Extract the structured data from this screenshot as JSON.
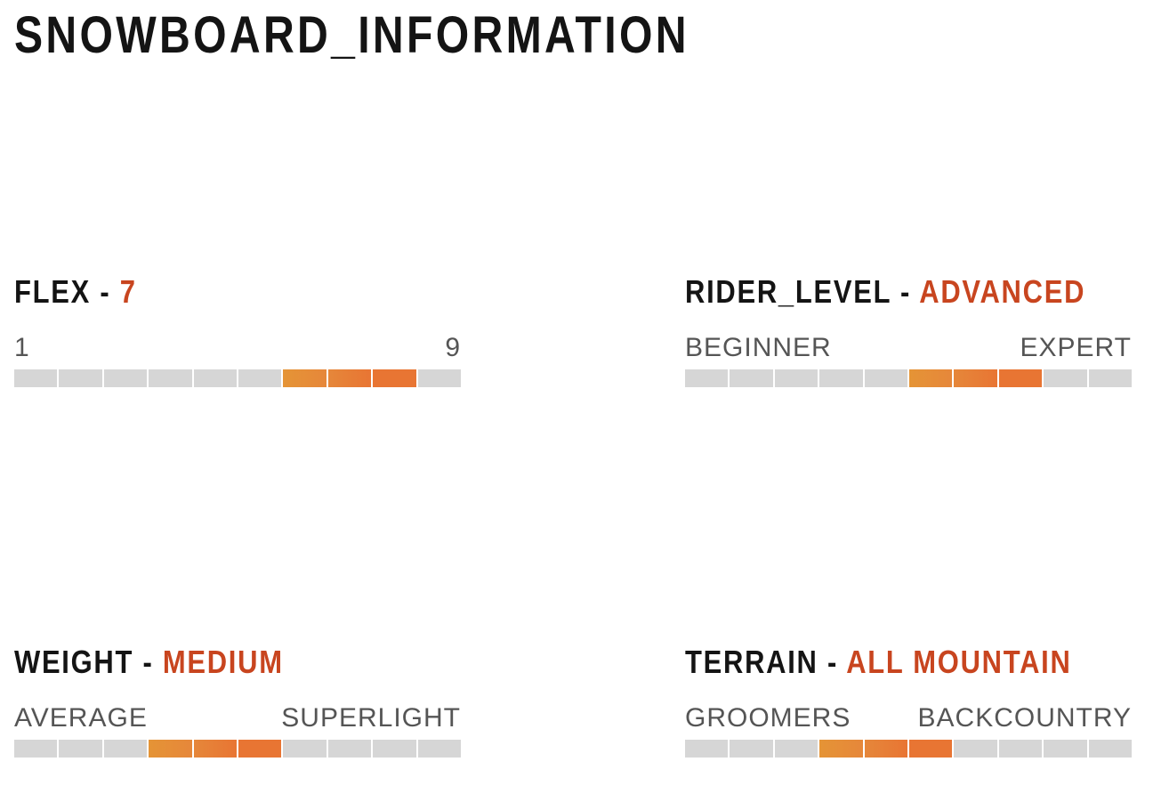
{
  "page": {
    "title": "SNOWBOARD_INFORMATION"
  },
  "colors": {
    "value_text": "#c8451f",
    "segment_empty": "#d6d6d6",
    "segment_gradient": [
      "#e59436",
      "#e6873a",
      "#e87533"
    ]
  },
  "specs": [
    {
      "id": "flex",
      "label": "FLEX",
      "separator": "-",
      "value": "7",
      "range_min": "1",
      "range_max": "9",
      "segments_total": 10,
      "highlight_segments": [
        7,
        8,
        9
      ]
    },
    {
      "id": "rider-level",
      "label": "RIDER_LEVEL",
      "separator": "-",
      "value": "ADVANCED",
      "range_min": "BEGINNER",
      "range_max": "EXPERT",
      "segments_total": 10,
      "highlight_segments": [
        6,
        7,
        8
      ]
    },
    {
      "id": "weight",
      "label": "WEIGHT",
      "separator": "-",
      "value": "MEDIUM",
      "range_min": "AVERAGE",
      "range_max": "SUPERLIGHT",
      "segments_total": 10,
      "highlight_segments": [
        4,
        5,
        6
      ]
    },
    {
      "id": "terrain",
      "label": "TERRAIN",
      "separator": "-",
      "value": "ALL MOUNTAIN",
      "range_min": "GROOMERS",
      "range_max": "BACKCOUNTRY",
      "segments_total": 10,
      "highlight_segments": [
        4,
        5,
        6
      ]
    }
  ]
}
